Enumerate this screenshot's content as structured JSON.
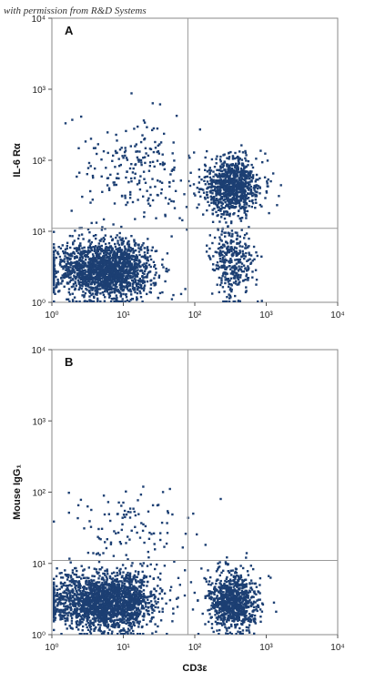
{
  "credit": "with permission from R&D Systems",
  "colors": {
    "events": "#1c3f73",
    "frame": "#888888",
    "gate": "#9a9a9a"
  },
  "chart_data": [
    {
      "type": "scatter",
      "panel_label": "A",
      "xlabel": "",
      "ylabel": "IL-6 Rα",
      "xscale": "log",
      "yscale": "log",
      "xlim": [
        1,
        10000
      ],
      "ylim": [
        1,
        10000
      ],
      "x_ticks": [
        "10⁰",
        "10¹",
        "10²",
        "10³",
        "10⁴"
      ],
      "y_ticks": [
        "10⁰",
        "10¹",
        "10²",
        "10³",
        "10⁴"
      ],
      "quadrant_gate": {
        "x": 80,
        "y": 11
      },
      "populations": [
        {
          "name": "CD3- IL-6Ra-",
          "x_center": 7,
          "y_center": 3,
          "x_spread_log": 0.28,
          "y_spread_log": 0.2,
          "count": 1400
        },
        {
          "name": "CD3- IL-6Ra-",
          "x_center": 2.5,
          "y_center": 3,
          "x_spread_log": 0.3,
          "y_spread_log": 0.2,
          "count": 500
        },
        {
          "name": "CD3+ IL-6Ra+",
          "x_center": 320,
          "y_center": 45,
          "x_spread_log": 0.2,
          "y_spread_log": 0.2,
          "count": 900
        },
        {
          "name": "CD3+ IL-6Ra- tail",
          "x_center": 320,
          "y_center": 4,
          "x_spread_log": 0.15,
          "y_spread_log": 0.25,
          "count": 350
        },
        {
          "name": "CD3- IL-6Ra+ scatter",
          "x_center": 15,
          "y_center": 80,
          "x_spread_log": 0.45,
          "y_spread_log": 0.35,
          "count": 220
        }
      ]
    },
    {
      "type": "scatter",
      "panel_label": "B",
      "xlabel": "CD3ε",
      "ylabel": "Mouse IgG₁",
      "xscale": "log",
      "yscale": "log",
      "xlim": [
        1,
        10000
      ],
      "ylim": [
        1,
        10000
      ],
      "x_ticks": [
        "10⁰",
        "10¹",
        "10²",
        "10³",
        "10⁴"
      ],
      "y_ticks": [
        "10⁰",
        "10¹",
        "10²",
        "10³",
        "10⁴"
      ],
      "quadrant_gate": {
        "x": 80,
        "y": 11
      },
      "populations": [
        {
          "name": "CD3- isotype",
          "x_center": 7,
          "y_center": 3,
          "x_spread_log": 0.3,
          "y_spread_log": 0.2,
          "count": 1600
        },
        {
          "name": "CD3- isotype left",
          "x_center": 2.2,
          "y_center": 3,
          "x_spread_log": 0.25,
          "y_spread_log": 0.2,
          "count": 500
        },
        {
          "name": "CD3+ isotype",
          "x_center": 330,
          "y_center": 3,
          "x_spread_log": 0.17,
          "y_spread_log": 0.2,
          "count": 900
        },
        {
          "name": "sparse upper events",
          "x_center": 12,
          "y_center": 30,
          "x_spread_log": 0.45,
          "y_spread_log": 0.3,
          "count": 120
        }
      ]
    }
  ]
}
